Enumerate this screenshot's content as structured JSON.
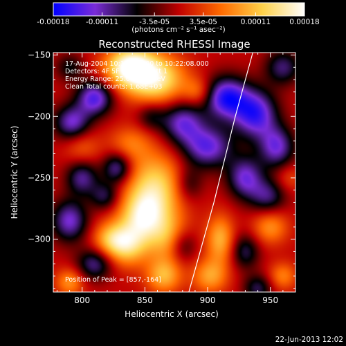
{
  "colorbar": {
    "ticks": [
      "-0.00018",
      "-0.00011",
      "-3.5e-05",
      "3.5e-05",
      "0.00011",
      "0.00018"
    ],
    "tick_values": [
      -0.00018,
      -0.00011,
      -3.5e-05,
      3.5e-05,
      0.00011,
      0.00018
    ],
    "range": [
      -0.00018,
      0.00018
    ],
    "units_label": "(photons cm⁻² s⁻¹ asec⁻²)",
    "colors": [
      "#0000ff",
      "#7a2cd8",
      "#000000",
      "#c00000",
      "#ff6a00",
      "#ffd24a",
      "#ffffff"
    ]
  },
  "chart_data": {
    "type": "heatmap",
    "title": "Reconstructed RHESSI Image",
    "xlabel": "Heliocentric X (arcsec)",
    "ylabel": "Heliocentric Y (arcsec)",
    "xlim": [
      777,
      970
    ],
    "ylim": [
      -343,
      -148
    ],
    "xticks": [
      800,
      850,
      900,
      950
    ],
    "yticks": [
      -150,
      -200,
      -250,
      -300
    ],
    "annotations": [
      "17-Aug-2004 10:19:08.000 to 10:22:08.000",
      "Detectors: 4F 5F 6F 7F 8F  Att 1",
      "Energy Range: 25.0 - 50.0 keV",
      "Clean     Total counts: 1.68E+03"
    ],
    "peak_label": "Position of Peak = [857,-164]",
    "peak": [
      857,
      -164
    ],
    "limb_x": [
      936,
      922,
      905,
      885
    ],
    "limb_y": [
      -148,
      -200,
      -270,
      -343
    ],
    "blobs": [
      {
        "x": 838,
        "y": -160,
        "v": 0.00018,
        "sx": 14,
        "sy": 12
      },
      {
        "x": 860,
        "y": -170,
        "v": 0.00014,
        "sx": 16,
        "sy": 14
      },
      {
        "x": 858,
        "y": -258,
        "v": 0.00013,
        "sx": 16,
        "sy": 20
      },
      {
        "x": 848,
        "y": -282,
        "v": 0.00012,
        "sx": 13,
        "sy": 14
      },
      {
        "x": 836,
        "y": -305,
        "v": 0.00012,
        "sx": 12,
        "sy": 12
      },
      {
        "x": 822,
        "y": -300,
        "v": 8e-05,
        "sx": 10,
        "sy": 10
      },
      {
        "x": 870,
        "y": -300,
        "v": 9e-05,
        "sx": 12,
        "sy": 14
      },
      {
        "x": 865,
        "y": -330,
        "v": 0.0001,
        "sx": 10,
        "sy": 10
      },
      {
        "x": 838,
        "y": -222,
        "v": 6e-05,
        "sx": 12,
        "sy": 10
      },
      {
        "x": 800,
        "y": -225,
        "v": 5e-05,
        "sx": 10,
        "sy": 10
      },
      {
        "x": 790,
        "y": -335,
        "v": 8e-05,
        "sx": 8,
        "sy": 8
      },
      {
        "x": 910,
        "y": -300,
        "v": 0.0001,
        "sx": 8,
        "sy": 14
      },
      {
        "x": 902,
        "y": -330,
        "v": 9e-05,
        "sx": 10,
        "sy": 10
      },
      {
        "x": 950,
        "y": -290,
        "v": 8e-05,
        "sx": 10,
        "sy": 10
      },
      {
        "x": 960,
        "y": -330,
        "v": 7e-05,
        "sx": 8,
        "sy": 8
      },
      {
        "x": 892,
        "y": -180,
        "v": 6e-05,
        "sx": 8,
        "sy": 8
      },
      {
        "x": 965,
        "y": -250,
        "v": 4e-05,
        "sx": 8,
        "sy": 8
      },
      {
        "x": 810,
        "y": -185,
        "v": -0.00014,
        "sx": 10,
        "sy": 10
      },
      {
        "x": 792,
        "y": -205,
        "v": -0.00012,
        "sx": 10,
        "sy": 10
      },
      {
        "x": 800,
        "y": -250,
        "v": -0.0001,
        "sx": 9,
        "sy": 10
      },
      {
        "x": 828,
        "y": -242,
        "v": -0.00011,
        "sx": 8,
        "sy": 9
      },
      {
        "x": 790,
        "y": -285,
        "v": -0.00012,
        "sx": 10,
        "sy": 12
      },
      {
        "x": 810,
        "y": -320,
        "v": -0.0001,
        "sx": 10,
        "sy": 9
      },
      {
        "x": 880,
        "y": -205,
        "v": -0.00012,
        "sx": 12,
        "sy": 12
      },
      {
        "x": 900,
        "y": -225,
        "v": -0.00013,
        "sx": 14,
        "sy": 12
      },
      {
        "x": 915,
        "y": -185,
        "v": -0.00016,
        "sx": 12,
        "sy": 12
      },
      {
        "x": 938,
        "y": -198,
        "v": -0.00015,
        "sx": 12,
        "sy": 14
      },
      {
        "x": 955,
        "y": -225,
        "v": -0.00012,
        "sx": 10,
        "sy": 12
      },
      {
        "x": 930,
        "y": -250,
        "v": -0.00012,
        "sx": 10,
        "sy": 12
      },
      {
        "x": 948,
        "y": -265,
        "v": -9e-05,
        "sx": 10,
        "sy": 10
      },
      {
        "x": 930,
        "y": -310,
        "v": -8e-05,
        "sx": 8,
        "sy": 10
      },
      {
        "x": 885,
        "y": -255,
        "v": -6e-05,
        "sx": 8,
        "sy": 10
      },
      {
        "x": 880,
        "y": -305,
        "v": -8e-05,
        "sx": 8,
        "sy": 10
      },
      {
        "x": 960,
        "y": -160,
        "v": -9e-05,
        "sx": 10,
        "sy": 10
      },
      {
        "x": 790,
        "y": -160,
        "v": -6e-05,
        "sx": 8,
        "sy": 8
      },
      {
        "x": 818,
        "y": -265,
        "v": -8e-05,
        "sx": 8,
        "sy": 8
      },
      {
        "x": 940,
        "y": -340,
        "v": -8e-05,
        "sx": 8,
        "sy": 8
      },
      {
        "x": 855,
        "y": -200,
        "v": -6e-05,
        "sx": 8,
        "sy": 8
      }
    ]
  },
  "timestamp": "22-Jun-2013 12:02"
}
